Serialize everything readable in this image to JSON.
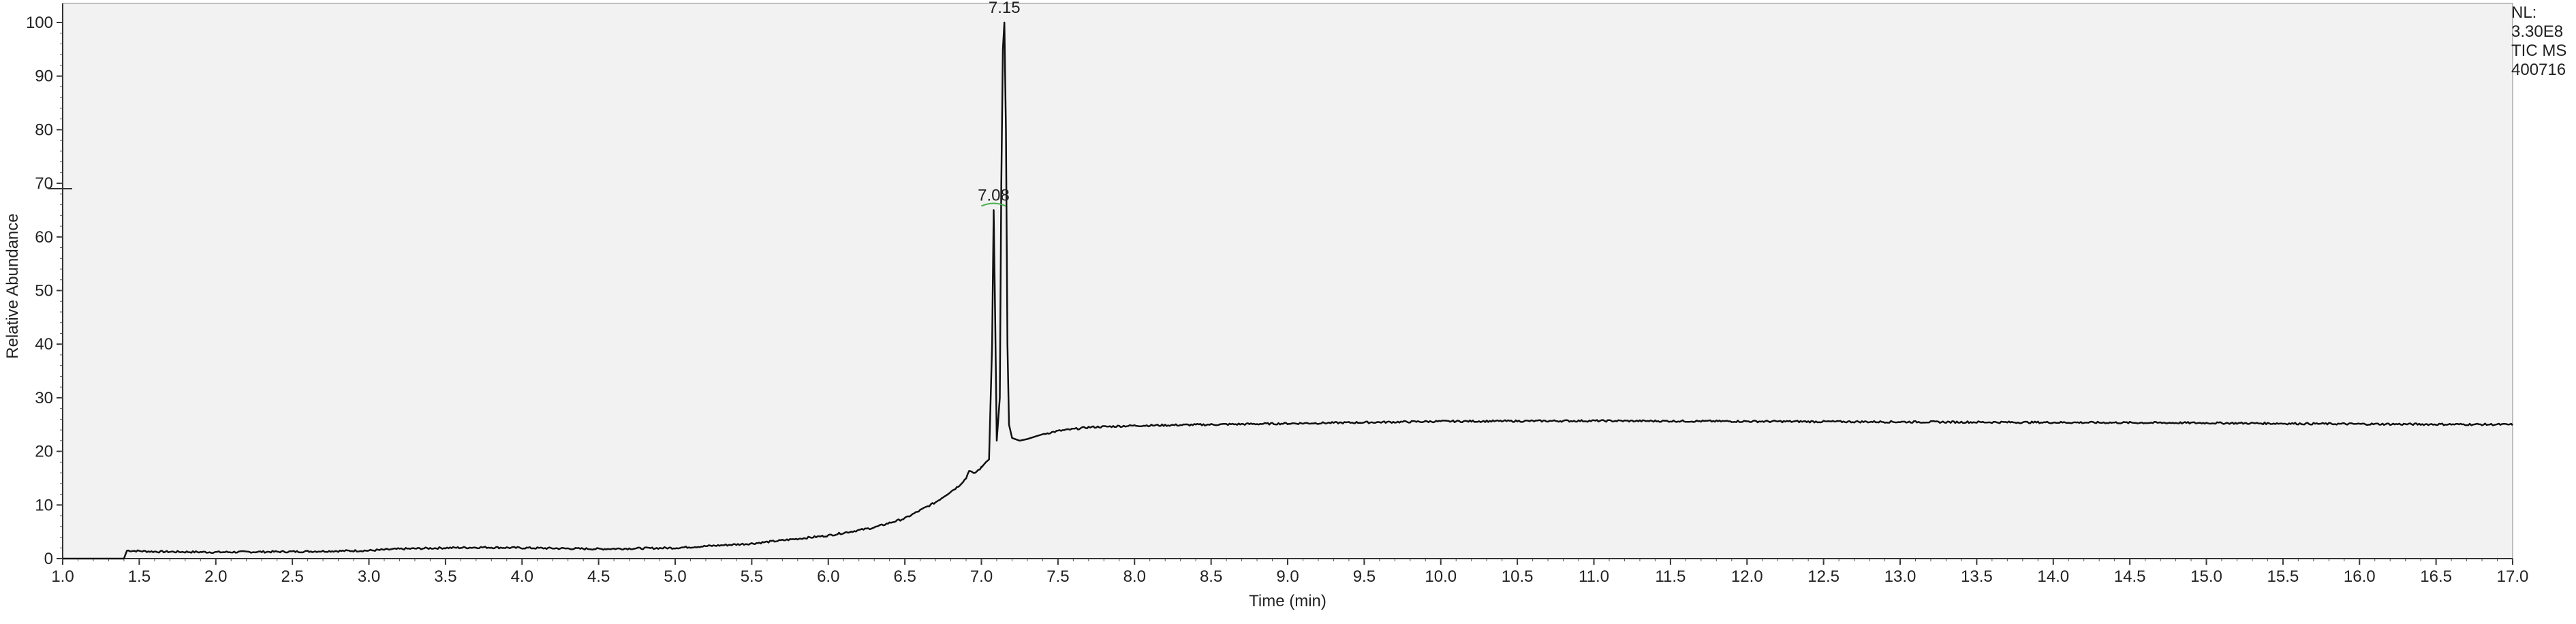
{
  "chart_data": {
    "type": "line",
    "title": "",
    "xlabel": "Time (min)",
    "ylabel": "Relative Abundance",
    "xlim": [
      1.0,
      17.0
    ],
    "ylim": [
      0,
      100
    ],
    "x_ticks": [
      "1.0",
      "1.5",
      "2.0",
      "2.5",
      "3.0",
      "3.5",
      "4.0",
      "4.5",
      "5.0",
      "5.5",
      "6.0",
      "6.5",
      "7.0",
      "7.5",
      "8.0",
      "8.5",
      "9.0",
      "9.5",
      "10.0",
      "10.5",
      "11.0",
      "11.5",
      "12.0",
      "12.5",
      "13.0",
      "13.5",
      "14.0",
      "14.5",
      "15.0",
      "15.5",
      "16.0",
      "16.5",
      "17.0"
    ],
    "y_ticks": [
      "0",
      "10",
      "20",
      "30",
      "40",
      "50",
      "60",
      "70",
      "80",
      "90",
      "100"
    ],
    "grid": false,
    "colors": {
      "line": "#111111",
      "plot_background": "#f2f2f2",
      "axis": "#333333",
      "peak_marker": "#4caf50"
    },
    "peaks": [
      {
        "label": "7.15",
        "x": 7.15,
        "y": 100
      },
      {
        "label": "7.08",
        "x": 7.08,
        "y": 65
      }
    ],
    "side_marker_y": 69,
    "series": [
      {
        "x": [
          1.0,
          1.4,
          1.42,
          1.6,
          2.0,
          2.5,
          3.0,
          3.2,
          3.5,
          3.75,
          4.0,
          4.5,
          5.0,
          5.5,
          6.0,
          6.3,
          6.5,
          6.7,
          6.85,
          6.9,
          6.92,
          6.95,
          7.0,
          7.03,
          7.05,
          7.07,
          7.08,
          7.09,
          7.1,
          7.12,
          7.13,
          7.14,
          7.15,
          7.16,
          7.17,
          7.18,
          7.2,
          7.25,
          7.3,
          7.4,
          7.5,
          7.7,
          8.0,
          8.5,
          9.0,
          10.0,
          11.0,
          12.0,
          13.0,
          14.0,
          15.0,
          16.0,
          17.0
        ],
        "y": [
          0,
          0,
          1.5,
          1.3,
          1.2,
          1.3,
          1.5,
          1.8,
          2.0,
          2.1,
          2.0,
          1.8,
          2.0,
          2.8,
          4.3,
          5.8,
          7.5,
          10.5,
          13.5,
          15.0,
          16.5,
          15.8,
          17.0,
          18.0,
          18.5,
          40,
          65,
          45,
          22,
          30,
          70,
          95,
          100,
          80,
          40,
          25,
          22.5,
          22.0,
          22.3,
          23.2,
          23.8,
          24.5,
          24.8,
          25.0,
          25.2,
          25.6,
          25.7,
          25.6,
          25.5,
          25.4,
          25.3,
          25.1,
          25.0
        ]
      }
    ]
  },
  "info": {
    "lines": [
      "NL:",
      "3.30E8",
      "TIC  MS",
      "400716"
    ]
  }
}
